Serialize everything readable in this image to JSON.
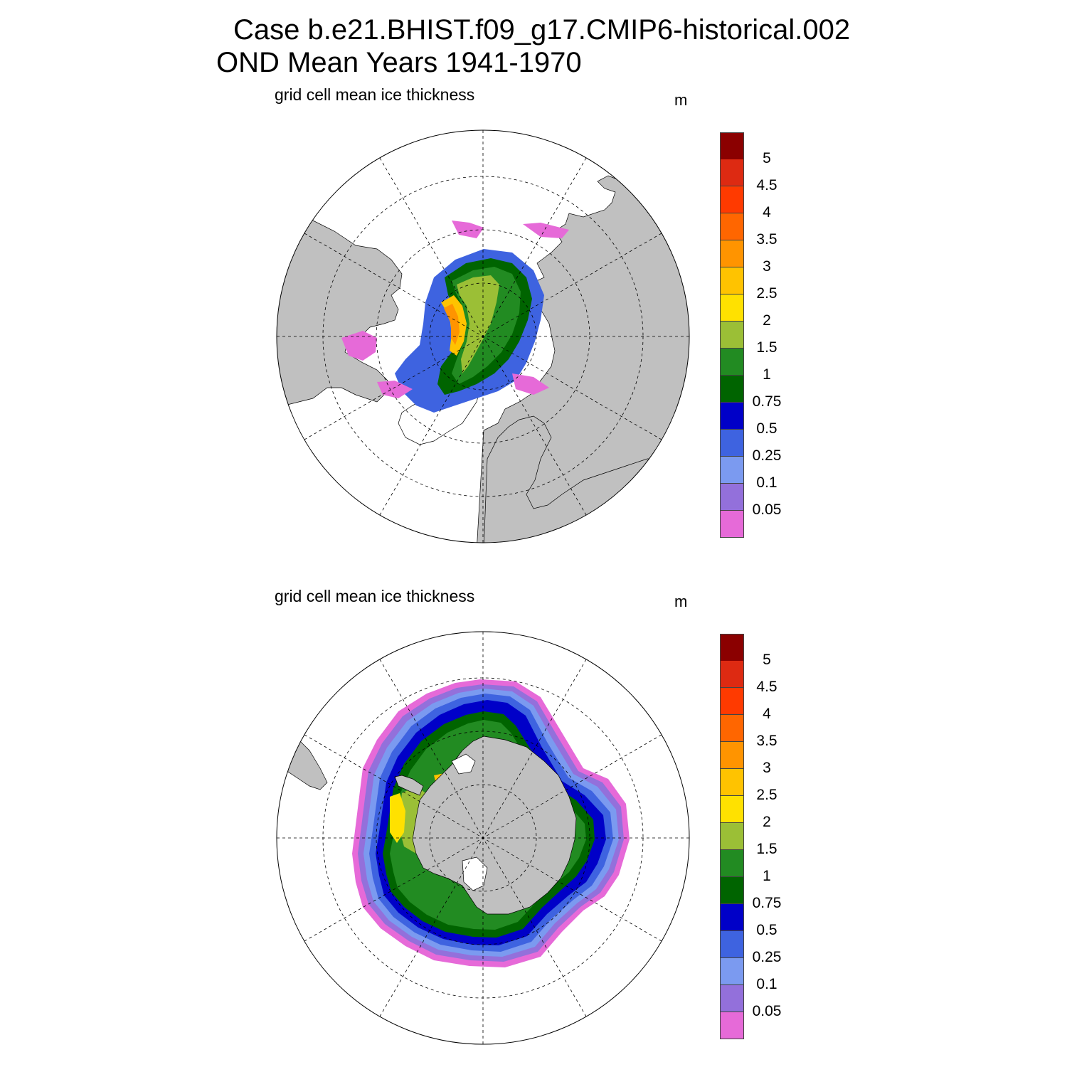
{
  "title": {
    "line1": "Case b.e21.BHIST.f09_g17.CMIP6-historical.002",
    "line2": "OND Mean   Years 1941-1970"
  },
  "panels": [
    {
      "id": "north",
      "hemisphere": "Northern Hemisphere",
      "subtitle": "grid cell mean ice thickness",
      "units": "m"
    },
    {
      "id": "south",
      "hemisphere": "Southern Hemisphere",
      "subtitle": "grid cell mean ice thickness",
      "units": "m"
    }
  ],
  "colorbar": {
    "labels": [
      "5",
      "4.5",
      "4",
      "3.5",
      "3",
      "2.5",
      "2",
      "1.5",
      "1",
      "0.75",
      "0.5",
      "0.25",
      "0.1",
      "0.05"
    ],
    "colors": [
      "#8b0000",
      "#dd2a12",
      "#ff3a00",
      "#ff6600",
      "#ff9400",
      "#ffc300",
      "#ffe100",
      "#9bbf36",
      "#228b22",
      "#006400",
      "#0000c8",
      "#3e63e0",
      "#7b9af0",
      "#9370db",
      "#e66ad8"
    ]
  },
  "map_colors": {
    "land": "#c0c0c0",
    "ocean": "#ffffff"
  }
}
